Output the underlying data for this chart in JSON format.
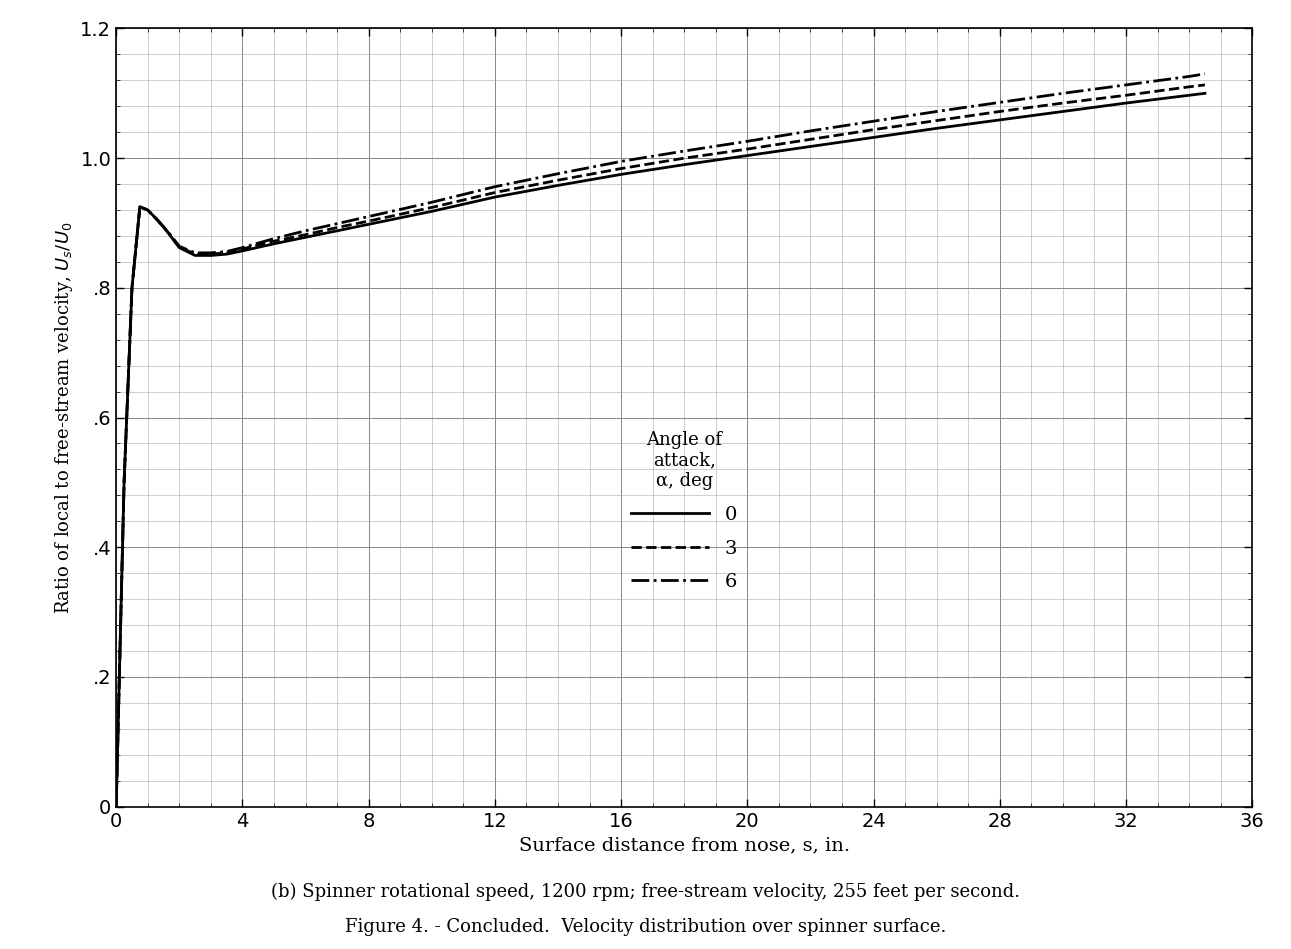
{
  "title": "Figure 4. - Concluded.  Velocity distribution over spinner surface.",
  "subtitle": "(b) Spinner rotational speed, 1200 rpm; free-stream velocity, 255 feet per second.",
  "xlabel": "Surface distance from nose, s, in.",
  "ylabel": "Ratio of local to free-stream velocity, U_s/U_0",
  "xlim": [
    0,
    36
  ],
  "ylim": [
    0.0,
    1.2
  ],
  "xticks": [
    0,
    4,
    8,
    12,
    16,
    20,
    24,
    28,
    32,
    36
  ],
  "yticks": [
    0.0,
    0.2,
    0.4,
    0.6,
    0.8,
    1.0,
    1.2
  ],
  "legend_title": "Angle of\nattack,\nα, deg",
  "legend_entries": [
    "0",
    "3",
    "6"
  ],
  "background_color": "#ffffff",
  "line_color": "#000000",
  "series": {
    "alpha0": {
      "x": [
        0.0,
        0.25,
        0.5,
        0.75,
        1.0,
        1.3,
        1.6,
        2.0,
        2.5,
        3.0,
        3.5,
        4.0,
        5.0,
        6.0,
        7.0,
        8.0,
        10.0,
        12.0,
        14.0,
        16.0,
        18.0,
        20.0,
        22.0,
        24.0,
        26.0,
        28.0,
        30.0,
        32.0,
        34.0,
        34.5
      ],
      "y": [
        0.0,
        0.5,
        0.8,
        0.925,
        0.92,
        0.905,
        0.888,
        0.862,
        0.85,
        0.85,
        0.852,
        0.857,
        0.868,
        0.878,
        0.888,
        0.898,
        0.918,
        0.94,
        0.958,
        0.975,
        0.99,
        1.004,
        1.018,
        1.032,
        1.046,
        1.059,
        1.072,
        1.085,
        1.097,
        1.1
      ],
      "linestyle": "solid",
      "linewidth": 2.0
    },
    "alpha3": {
      "x": [
        0.0,
        0.25,
        0.5,
        0.75,
        1.0,
        1.3,
        1.6,
        2.0,
        2.5,
        3.0,
        3.5,
        4.0,
        5.0,
        6.0,
        7.0,
        8.0,
        10.0,
        12.0,
        14.0,
        16.0,
        18.0,
        20.0,
        22.0,
        24.0,
        26.0,
        28.0,
        30.0,
        32.0,
        34.0,
        34.5
      ],
      "y": [
        0.0,
        0.5,
        0.8,
        0.925,
        0.92,
        0.905,
        0.888,
        0.863,
        0.852,
        0.852,
        0.854,
        0.86,
        0.872,
        0.882,
        0.893,
        0.903,
        0.924,
        0.947,
        0.966,
        0.984,
        1.0,
        1.014,
        1.029,
        1.044,
        1.058,
        1.072,
        1.085,
        1.097,
        1.11,
        1.113
      ],
      "linestyle": "dashed",
      "linewidth": 2.0
    },
    "alpha6": {
      "x": [
        0.0,
        0.25,
        0.5,
        0.75,
        1.0,
        1.3,
        1.6,
        2.0,
        2.5,
        3.0,
        3.5,
        4.0,
        5.0,
        6.0,
        7.0,
        8.0,
        10.0,
        12.0,
        14.0,
        16.0,
        18.0,
        20.0,
        22.0,
        24.0,
        26.0,
        28.0,
        30.0,
        32.0,
        34.0,
        34.5
      ],
      "y": [
        0.0,
        0.5,
        0.8,
        0.925,
        0.92,
        0.905,
        0.889,
        0.864,
        0.854,
        0.854,
        0.856,
        0.862,
        0.876,
        0.888,
        0.899,
        0.91,
        0.932,
        0.956,
        0.976,
        0.995,
        1.011,
        1.026,
        1.042,
        1.057,
        1.072,
        1.086,
        1.1,
        1.113,
        1.126,
        1.13
      ],
      "linestyle": "dashdot",
      "linewidth": 2.0
    }
  }
}
